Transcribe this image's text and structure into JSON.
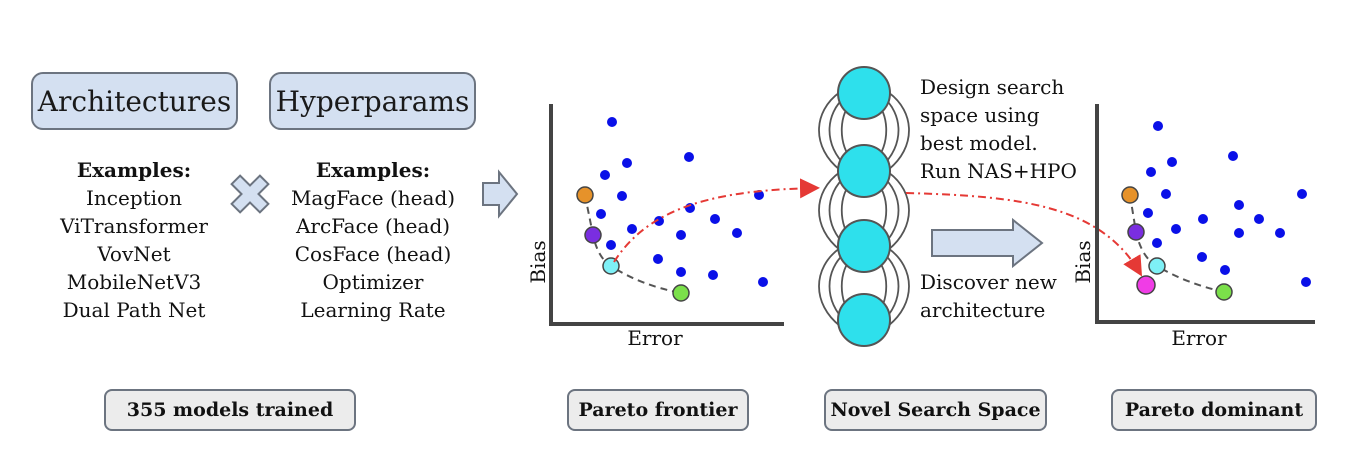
{
  "arch_box": "Architectures",
  "hyper_box": "Hyperparams",
  "arch_examples": {
    "heading": "Examples:",
    "items": [
      "Inception",
      "ViTransformer",
      "VovNet",
      "MobileNetV3",
      "Dual Path Net"
    ]
  },
  "hyper_examples": {
    "heading": "Examples:",
    "items": [
      "MagFace (head)",
      "ArcFace (head)",
      "CosFace (head)",
      "Optimizer",
      "Learning Rate"
    ]
  },
  "captions": {
    "models_trained": "355 models trained",
    "pareto_frontier": "Pareto frontier",
    "novel_search_space": "Novel Search Space",
    "pareto_dominant": "Pareto dominant"
  },
  "plot_left": {
    "xlabel": "Error",
    "ylabel": "Bias"
  },
  "plot_right": {
    "xlabel": "Error",
    "ylabel": "Bias"
  },
  "search_note": [
    "Design search",
    "space using",
    "best model.",
    "Run NAS+HPO"
  ],
  "discover_note": [
    "Discover new",
    "architecture"
  ],
  "colors": {
    "box_fill": "#d4e0f1",
    "caption_fill": "#ececec",
    "dots": "#0a10e8",
    "node": "#2ee0ec",
    "orange": "#e6922a",
    "purple": "#7a2ee0",
    "cyan": "#7ef0f6",
    "green": "#7be04a",
    "magenta": "#f03ce6",
    "arrow_red": "#e53935"
  }
}
